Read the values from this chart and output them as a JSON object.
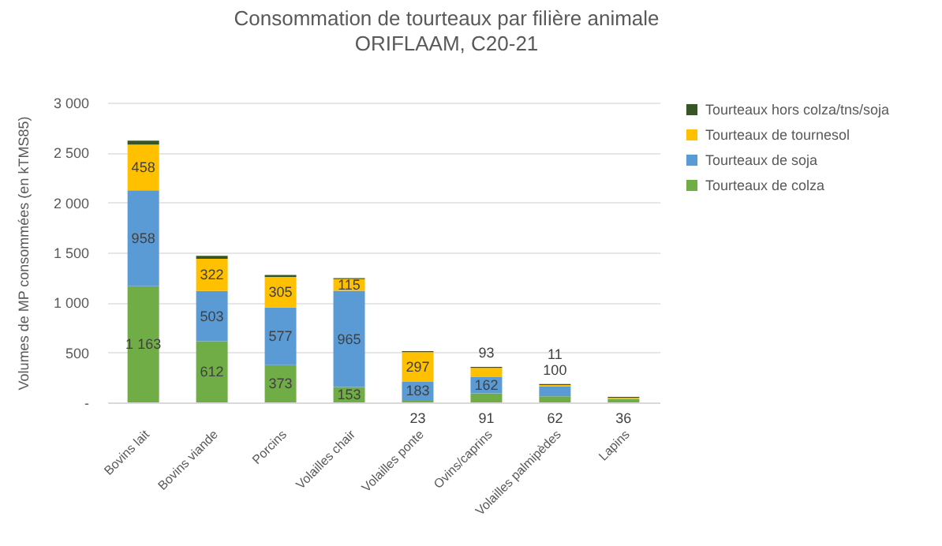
{
  "chart_data": {
    "type": "bar",
    "stacked": true,
    "title": "Consommation de tourteaux par filière animale",
    "subtitle": "ORIFLAAM, C20-21",
    "ylabel": "Volumes de MP consommées (en kTMS85)",
    "categories": [
      "Bovins lait",
      "Bovins viande",
      "Porcins",
      "Volailles chair",
      "Volailles ponte",
      "Ovins/caprins",
      "Volailles palmipèdes",
      "Lapins"
    ],
    "series": [
      {
        "name": "Tourteaux de colza",
        "color": "#70ad47",
        "values": [
          1163,
          612,
          373,
          153,
          23,
          91,
          62,
          36
        ],
        "value_labels": [
          "1 163",
          "612",
          "373",
          "153",
          "23",
          "91",
          "62",
          "36"
        ]
      },
      {
        "name": "Tourteaux de soja",
        "color": "#5b9bd5",
        "values": [
          958,
          503,
          577,
          965,
          183,
          162,
          100,
          null
        ],
        "value_labels": [
          "958",
          "503",
          "577",
          "965",
          "183",
          "162",
          "100",
          null
        ]
      },
      {
        "name": "Tourteaux de tournesol",
        "color": "#ffc000",
        "values": [
          458,
          322,
          305,
          115,
          297,
          93,
          11,
          10
        ],
        "value_labels": [
          "458",
          "322",
          "305",
          "115",
          "297",
          "93",
          "11",
          null
        ]
      },
      {
        "name": "Tourteaux hors colza/tns/soja",
        "color": "#375623",
        "values": [
          40,
          30,
          20,
          10,
          10,
          10,
          10,
          10
        ]
      }
    ],
    "ylim": [
      0,
      3000
    ],
    "yticks": [
      {
        "value": 0,
        "label": "-"
      },
      500,
      {
        "value": 1000,
        "label": "1 000"
      },
      {
        "value": 1500,
        "label": "1 500"
      },
      {
        "value": 2000,
        "label": "2 000"
      },
      {
        "value": 2500,
        "label": "2 500"
      },
      {
        "value": 3000,
        "label": "3 000"
      }
    ],
    "grid": "y",
    "legend": "right"
  }
}
